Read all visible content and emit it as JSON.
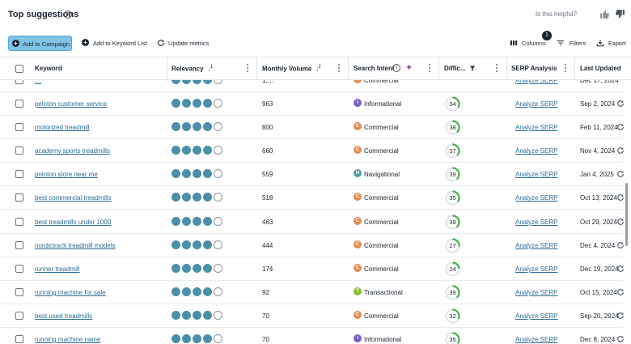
{
  "header": {
    "title": "Top suggestions",
    "helpful_text": "Is this helpful?"
  },
  "toolbar": {
    "add_campaign": "Add to Campaign",
    "add_keyword_list": "Add to Keyword List",
    "update_metrics": "Update metrics",
    "columns": "Columns",
    "columns_badge": "1",
    "filters": "Filters",
    "export": "Export"
  },
  "table": {
    "columns": {
      "keyword": "Keyword",
      "relevancy": "Relevancy",
      "relevancy_sort": "1",
      "volume": "Monthly Volume",
      "volume_sort": "2",
      "intent": "Search Intent",
      "difficulty": "Diffic...",
      "serp": "SERP Analysis",
      "updated": "Last Updated"
    },
    "partial_row": {
      "keyword": "…",
      "volume": "1,…",
      "intent": "Commercial",
      "serp": "Analyze SERP",
      "date": "Dec 17, 2024"
    },
    "rows": [
      {
        "keyword": "peloton customer service",
        "relevancy": 4,
        "volume": "963",
        "intent": "Informational",
        "intent_letter": "I",
        "kd": 34,
        "serp": "Analyze SERP",
        "date": "Sep 2, 2024"
      },
      {
        "keyword": "motorized treadmill",
        "relevancy": 4,
        "volume": "800",
        "intent": "Commercial",
        "intent_letter": "C",
        "kd": 38,
        "serp": "Analyze SERP",
        "date": "Feb 11, 2024"
      },
      {
        "keyword": "academy sports treadmills",
        "relevancy": 4,
        "volume": "660",
        "intent": "Commercial",
        "intent_letter": "C",
        "kd": 37,
        "serp": "Analyze SERP",
        "date": "Nov 4, 2024"
      },
      {
        "keyword": "peloton store near me",
        "relevancy": 4,
        "volume": "559",
        "intent": "Navigational",
        "intent_letter": "N",
        "kd": 39,
        "serp": "Analyze SERP",
        "date": "Jan 4, 2025"
      },
      {
        "keyword": "best commercial treadmills",
        "relevancy": 4,
        "volume": "518",
        "intent": "Commercial",
        "intent_letter": "C",
        "kd": 35,
        "serp": "Analyze SERP",
        "date": "Oct 13, 2024"
      },
      {
        "keyword": "best treadmills under 1000",
        "relevancy": 4,
        "volume": "463",
        "intent": "Commercial",
        "intent_letter": "C",
        "kd": 39,
        "serp": "Analyze SERP",
        "date": "Oct 29, 2024"
      },
      {
        "keyword": "nordictrack treadmill models",
        "relevancy": 4,
        "volume": "444",
        "intent": "Commercial",
        "intent_letter": "C",
        "kd": 27,
        "serp": "Analyze SERP",
        "date": "Dec 4, 2024"
      },
      {
        "keyword": "runner treadmill",
        "relevancy": 4,
        "volume": "174",
        "intent": "Commercial",
        "intent_letter": "C",
        "kd": 24,
        "serp": "Analyze SERP",
        "date": "Dec 19, 2024"
      },
      {
        "keyword": "running machine for sale",
        "relevancy": 4,
        "volume": "92",
        "intent": "Transactional",
        "intent_letter": "T",
        "kd": 39,
        "serp": "Analyze SERP",
        "date": "Oct 15, 2024"
      },
      {
        "keyword": "best used treadmills",
        "relevancy": 4,
        "volume": "70",
        "intent": "Commercial",
        "intent_letter": "C",
        "kd": 32,
        "serp": "Analyze SERP",
        "date": "Sep 20, 2024"
      },
      {
        "keyword": "running machine name",
        "relevancy": 4,
        "volume": "70",
        "intent": "Informational",
        "intent_letter": "I",
        "kd": 35,
        "serp": "Analyze SERP",
        "date": "Dec 8, 2024"
      }
    ]
  },
  "colors": {
    "accent": "#7fc3e6",
    "link": "#2b6c96",
    "relevancy_dot": "#4b8fa8",
    "intent": {
      "Commercial": "#e98a4e",
      "Informational": "#7b5fc7",
      "Navigational": "#4f9e9e",
      "Transactional": "#8abd3a"
    },
    "kd_arc": "#4caf50",
    "kd_track": "#e3e6ea"
  },
  "icons": [
    "info-icon",
    "thumbs-up-icon",
    "thumbs-down-icon",
    "plus-circle-icon",
    "refresh-icon",
    "columns-icon",
    "filter-icon",
    "export-icon",
    "sparkle-icon",
    "funnel-icon",
    "kebab-icon"
  ]
}
